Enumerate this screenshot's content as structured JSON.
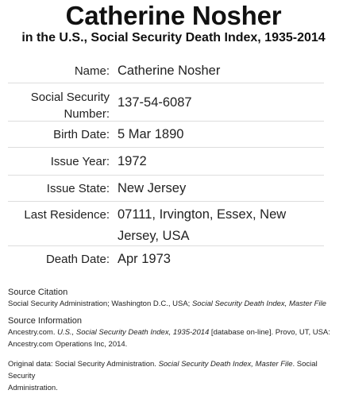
{
  "header": {
    "title": "Catherine Nosher",
    "subtitle": "in the U.S., Social Security Death Index, 1935-2014"
  },
  "records": [
    {
      "label": "Name:",
      "value": "Catherine Nosher"
    },
    {
      "label_line1": "Social Security",
      "label_line2": "Number:",
      "value": "137-54-6087"
    },
    {
      "label": "Birth Date:",
      "value": "5 Mar 1890"
    },
    {
      "label": "Issue Year:",
      "value": "1972"
    },
    {
      "label": "Issue State:",
      "value": "New Jersey"
    },
    {
      "label": "Last Residence:",
      "value_line1": "07111, Irvington, Essex, New",
      "value_line2": "Jersey, USA"
    },
    {
      "label": "Death Date:",
      "value": "Apr 1973"
    }
  ],
  "source": {
    "citation_heading": "Source Citation",
    "citation_plain": "Social Security Administration; Washington D.C., USA; ",
    "citation_italic": "Social Security Death Index, Master File",
    "info_heading": "Source Information",
    "info_plain1": "Ancestry.com. ",
    "info_italic1": "U.S., Social Security Death Index, 1935-2014",
    "info_plain2": " [database on-line]. Provo, UT, USA:",
    "info_line2": "Ancestry.com Operations Inc, 2014.",
    "original_plain1": "Original data: Social Security Administration. ",
    "original_italic": "Social Security Death Index, Master File",
    "original_plain2": ". Social Security",
    "original_line2": "Administration."
  }
}
